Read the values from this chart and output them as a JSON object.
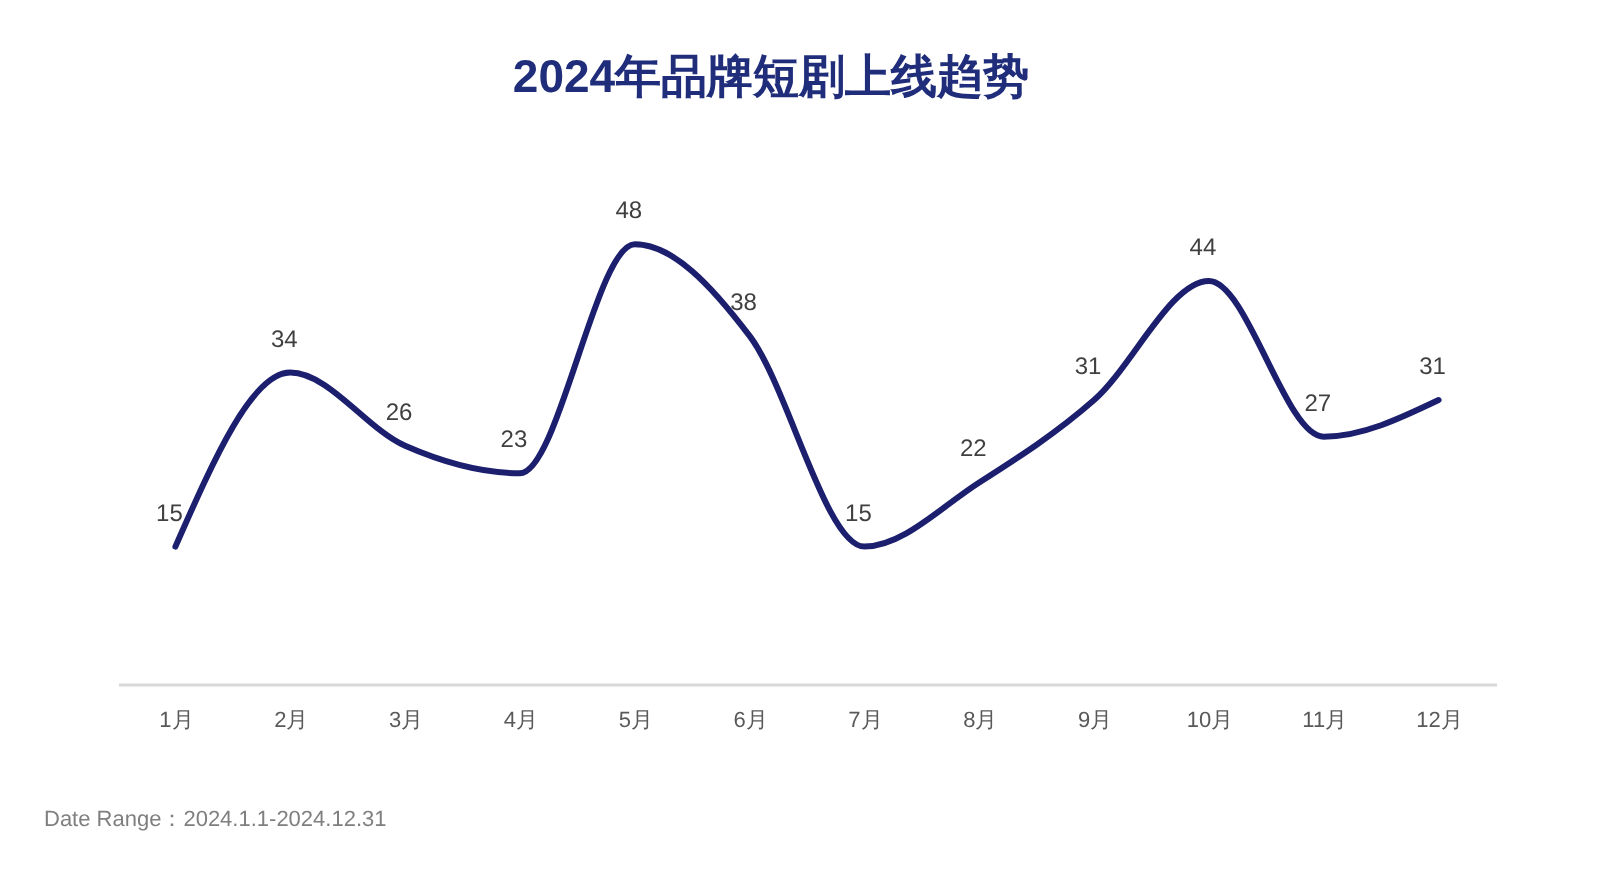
{
  "chart_data": {
    "type": "line",
    "title": "2024年品牌短剧上线趋势",
    "categories": [
      "1月",
      "2月",
      "3月",
      "4月",
      "5月",
      "6月",
      "7月",
      "8月",
      "9月",
      "10月",
      "11月",
      "12月"
    ],
    "values": [
      15,
      34,
      26,
      23,
      48,
      38,
      15,
      22,
      31,
      44,
      27,
      31
    ],
    "color": "#1c1f6e",
    "data_labels": true,
    "annotations": [
      "Date Range：2024.1.1-2024.12.31"
    ]
  }
}
